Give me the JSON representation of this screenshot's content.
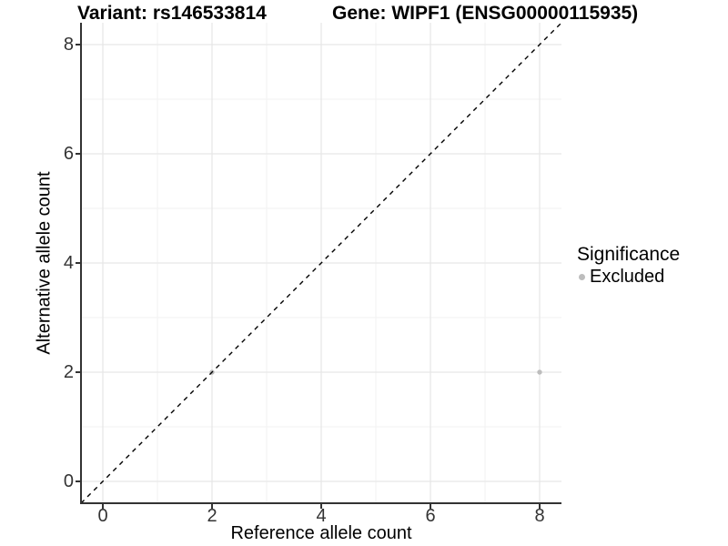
{
  "titles": {
    "variant": "Variant: rs146533814",
    "gene": "Gene: WIPF1 (ENSG00000115935)"
  },
  "legend": {
    "title": "Significance",
    "items": [
      {
        "label": "Excluded",
        "color": "#bdbdbd"
      }
    ]
  },
  "chart_data": {
    "type": "scatter",
    "title": "Variant: rs146533814 / Gene: WIPF1 (ENSG00000115935)",
    "xlabel": "Reference allele count",
    "ylabel": "Alternative allele count",
    "x_ticks": [
      0,
      2,
      4,
      6,
      8
    ],
    "y_ticks": [
      0,
      2,
      4,
      6,
      8
    ],
    "x_minor_ticks": [
      1,
      3,
      5,
      7
    ],
    "y_minor_ticks": [
      1,
      3,
      5,
      7
    ],
    "xlim": [
      -0.4,
      8.4
    ],
    "ylim": [
      -0.4,
      8.4
    ],
    "grid": "major+minor",
    "legend_position": "right",
    "series": [
      {
        "name": "Excluded",
        "color": "#bdbdbd",
        "points": [
          {
            "x": 2,
            "y": 2
          },
          {
            "x": 8,
            "y": 2
          }
        ]
      }
    ],
    "reference_line": {
      "type": "identity",
      "equation": "y = x",
      "style": "dashed",
      "color": "#000000"
    }
  },
  "colors": {
    "background": "#ffffff",
    "grid_major": "#e7e7e7",
    "grid_minor": "#f2f2f2",
    "axis_line": "#333333",
    "tick_text": "#333333",
    "point": "#bdbdbd"
  }
}
